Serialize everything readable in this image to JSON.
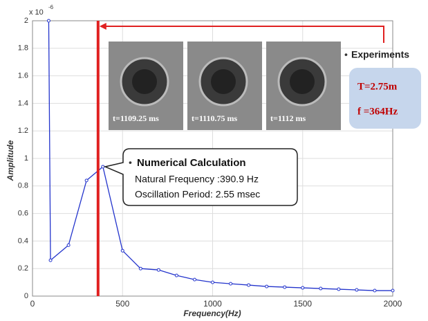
{
  "chart_data": {
    "type": "line",
    "y_label": "Amplitude",
    "x_label": "Frequency(Hz)",
    "y_multiplier": "x 10",
    "y_multiplier_exponent": "-6",
    "x": [
      90,
      100,
      200,
      300,
      390.9,
      500,
      600,
      700,
      800,
      900,
      1000,
      1100,
      1200,
      1300,
      1400,
      1500,
      1600,
      1700,
      1800,
      1900,
      2000
    ],
    "series": [
      {
        "name": "Numerical Calculation",
        "color": "#2233cc",
        "values": [
          2,
          0.26,
          0.37,
          0.84,
          0.94,
          0.33,
          0.2,
          0.19,
          0.15,
          0.12,
          0.1,
          0.09,
          0.08,
          0.07,
          0.065,
          0.06,
          0.055,
          0.05,
          0.045,
          0.04,
          0.04
        ]
      }
    ],
    "xlim": [
      0,
      2000
    ],
    "ylim": [
      0,
      2
    ],
    "xticks": [
      0,
      500,
      1000,
      1500,
      2000
    ],
    "yticks": [
      0,
      0.2,
      0.4,
      0.6,
      0.8,
      1,
      1.2,
      1.4,
      1.6,
      1.8,
      2
    ],
    "grid": true,
    "reference_line": {
      "x": 364,
      "color": "#e02020"
    },
    "photos": [
      "t=1109.25 ms",
      "t=1110.75 ms",
      "t=1112 ms"
    ],
    "experiments": {
      "title": "Experiments",
      "lines": [
        "T=2.75m",
        "f =364Hz"
      ]
    },
    "callout": {
      "title": "Numerical Calculation",
      "lines": [
        "Natural Frequency :390.9 Hz",
        "Oscillation Period: 2.55 msec"
      ]
    }
  }
}
